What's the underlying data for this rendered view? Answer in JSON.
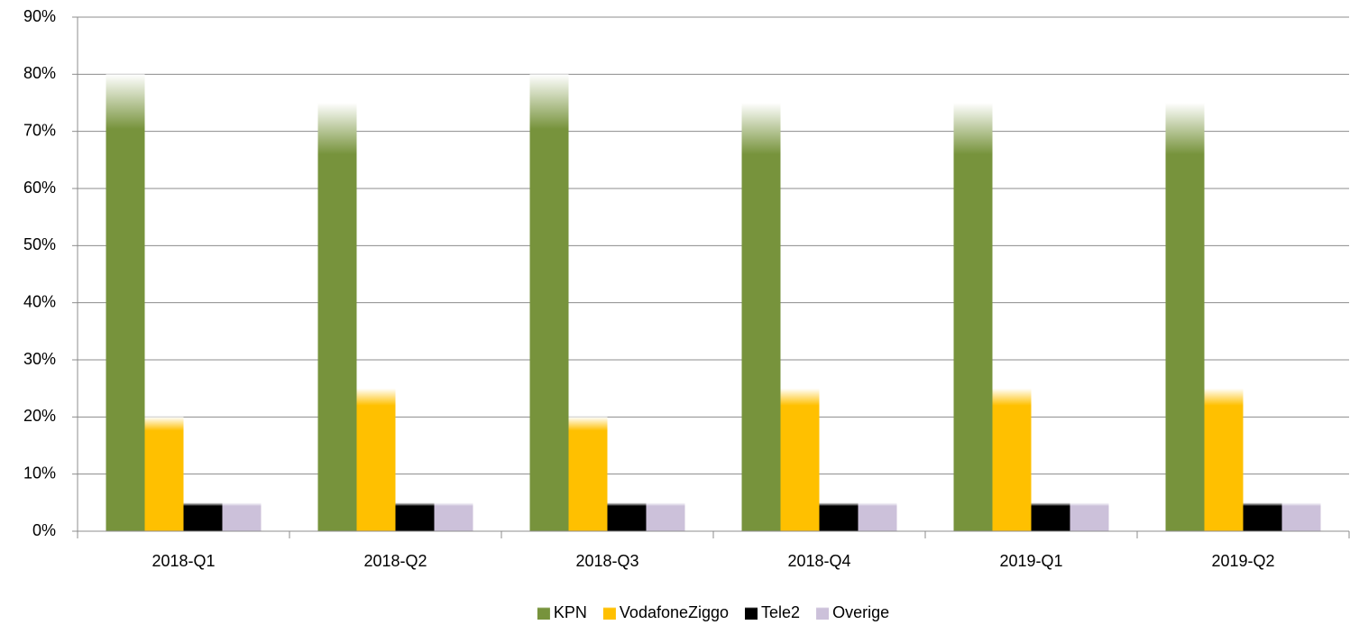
{
  "chart_data": {
    "type": "bar",
    "categories": [
      "2018-Q1",
      "2018-Q2",
      "2018-Q3",
      "2018-Q4",
      "2019-Q1",
      "2019-Q2"
    ],
    "series": [
      {
        "name": "KPN",
        "color": "#77933c",
        "values": [
          80,
          75,
          80,
          75,
          75,
          75
        ]
      },
      {
        "name": "VodafoneZiggo",
        "color": "#ffc000",
        "values": [
          20,
          25,
          20,
          25,
          25,
          25
        ]
      },
      {
        "name": "Tele2",
        "color": "#000000",
        "values": [
          5,
          5,
          5,
          5,
          5,
          5
        ]
      },
      {
        "name": "Overige",
        "color": "#ccc1da",
        "values": [
          5,
          5,
          5,
          5,
          5,
          5
        ]
      }
    ],
    "ylim": [
      0,
      90
    ],
    "yticks": [
      {
        "value": 0,
        "label": "0%"
      },
      {
        "value": 10,
        "label": "10%"
      },
      {
        "value": 20,
        "label": "20%"
      },
      {
        "value": 30,
        "label": "30%"
      },
      {
        "value": 40,
        "label": "40%"
      },
      {
        "value": 50,
        "label": "50%"
      },
      {
        "value": 60,
        "label": "60%"
      },
      {
        "value": 70,
        "label": "70%"
      },
      {
        "value": 80,
        "label": "80%"
      },
      {
        "value": 90,
        "label": "90%"
      }
    ],
    "grid": true,
    "legend": "bottom"
  }
}
